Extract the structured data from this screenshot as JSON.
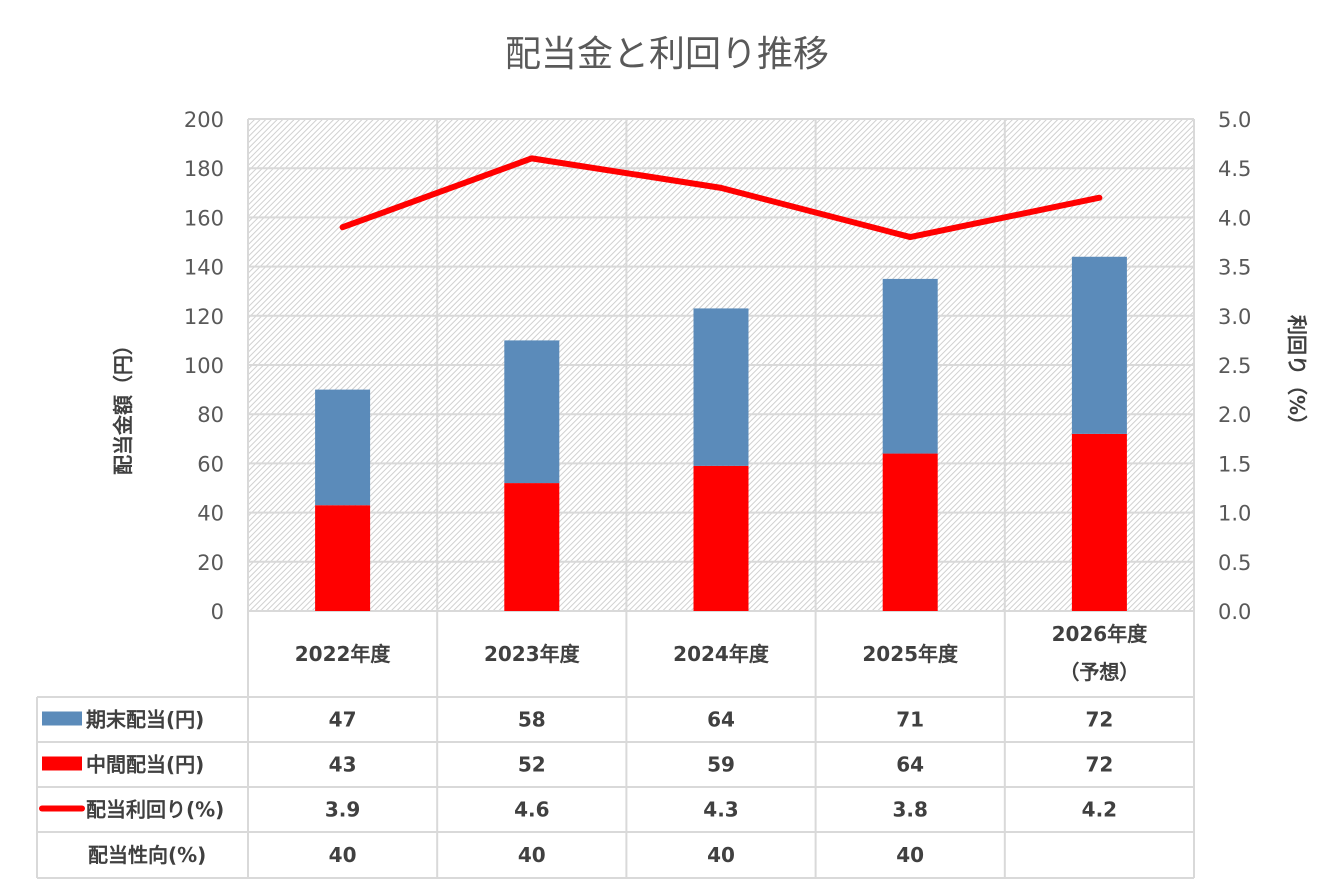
{
  "chart_data": {
    "type": "bar",
    "title": "配当金と利回り推移",
    "ylabel": "配当金額（円）",
    "y2label": "利回り（%）",
    "ylim": [
      0,
      200
    ],
    "y2lim": [
      0,
      5.0
    ],
    "yticks": [
      "0",
      "20",
      "40",
      "60",
      "80",
      "100",
      "120",
      "140",
      "160",
      "180",
      "200"
    ],
    "y2ticks": [
      "0.0",
      "0.5",
      "1.0",
      "1.5",
      "2.0",
      "2.5",
      "3.0",
      "3.5",
      "4.0",
      "4.5",
      "5.0"
    ],
    "categories": [
      "2022年度",
      "2023年度",
      "2024年度",
      "2025年度",
      "2026年度"
    ],
    "category_sub": [
      "",
      "",
      "",
      "",
      "（予想）"
    ],
    "series": [
      {
        "name": "期末配当(円)",
        "kind": "bar-stacked",
        "color": "#5B8BBA",
        "values": [
          47,
          58,
          64,
          71,
          72
        ],
        "labels": [
          "47",
          "58",
          "64",
          "71",
          "72"
        ]
      },
      {
        "name": "中間配当(円)",
        "kind": "bar-stacked",
        "color": "#FF0000",
        "values": [
          43,
          52,
          59,
          64,
          72
        ],
        "labels": [
          "43",
          "52",
          "59",
          "64",
          "72"
        ]
      },
      {
        "name": "配当利回り(%)",
        "kind": "line",
        "axis": "right",
        "color": "#FF0000",
        "values": [
          3.9,
          4.6,
          4.3,
          3.8,
          4.2
        ],
        "labels": [
          "3.9",
          "4.6",
          "4.3",
          "3.8",
          "4.2"
        ]
      },
      {
        "name": "配当性向(%)",
        "kind": "table-only",
        "values": [
          40,
          40,
          40,
          40,
          null
        ],
        "labels": [
          "40",
          "40",
          "40",
          "40",
          ""
        ]
      }
    ],
    "grid": true,
    "legend": "data-table-left"
  }
}
